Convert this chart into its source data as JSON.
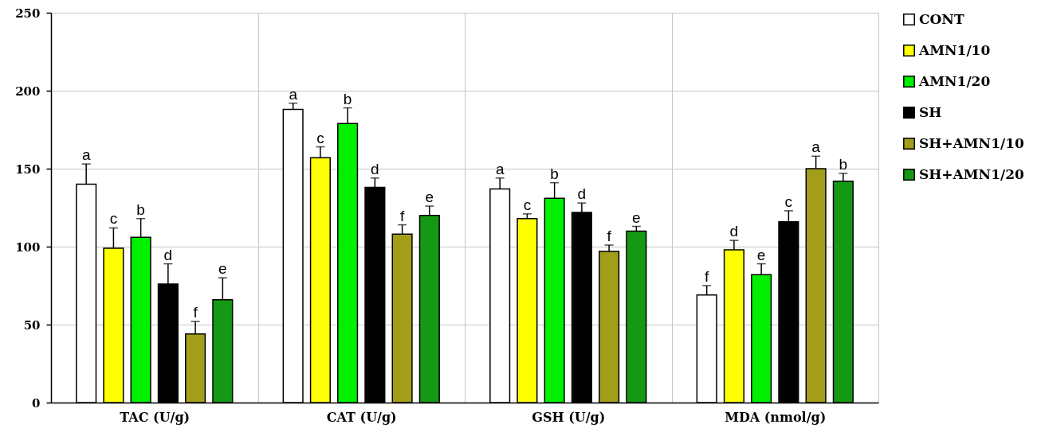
{
  "chart_data": {
    "type": "bar",
    "categories": [
      "TAC (U/g)",
      "CAT (U/g)",
      "GSH (U/g)",
      "MDA (nmol/g)"
    ],
    "series": [
      {
        "name": "CONT",
        "color": "#ffffff",
        "values": [
          140,
          188,
          137,
          69
        ],
        "errors": [
          13,
          4,
          7,
          6
        ],
        "value_labels": [
          "a",
          "a",
          "a",
          "f"
        ]
      },
      {
        "name": "AMN1/10",
        "color": "#ffff00",
        "values": [
          99,
          157,
          118,
          98
        ],
        "errors": [
          13,
          7,
          3,
          6
        ],
        "value_labels": [
          "c",
          "c",
          "c",
          "d"
        ]
      },
      {
        "name": "AMN1/20",
        "color": "#00f000",
        "values": [
          106,
          179,
          131,
          82
        ],
        "errors": [
          12,
          10,
          10,
          7
        ],
        "value_labels": [
          "b",
          "b",
          "b",
          "e"
        ]
      },
      {
        "name": "SH",
        "color": "#000000",
        "values": [
          76,
          138,
          122,
          116
        ],
        "errors": [
          13,
          6,
          6,
          7
        ],
        "value_labels": [
          "d",
          "d",
          "d",
          "c"
        ]
      },
      {
        "name": "SH+AMN1/10",
        "color": "#a39e1a",
        "values": [
          44,
          108,
          97,
          150
        ],
        "errors": [
          8,
          6,
          4,
          8
        ],
        "value_labels": [
          "f",
          "f",
          "f",
          "a"
        ]
      },
      {
        "name": "SH+AMN1/20",
        "color": "#159915",
        "values": [
          66,
          120,
          110,
          142
        ],
        "errors": [
          14,
          6,
          3,
          5
        ],
        "value_labels": [
          "e",
          "e",
          "e",
          "b"
        ]
      }
    ],
    "ylim": [
      0,
      250
    ],
    "yticks": [
      0,
      50,
      100,
      150,
      200,
      250
    ],
    "grid": true,
    "legend": "top right"
  }
}
